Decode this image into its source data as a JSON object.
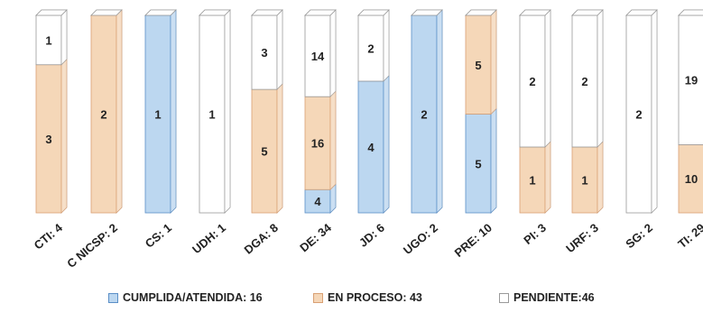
{
  "chart_data": {
    "type": "bar",
    "stacked": true,
    "style": "3d-columns",
    "categories": [
      "CTI: 4",
      "C NICSP: 2",
      "CS: 1",
      "UDH: 1",
      "DGA: 8",
      "DE: 34",
      "JD: 6",
      "UGO: 2",
      "PRE: 10",
      "PI: 3",
      "URF: 3",
      "SG: 2",
      "TI: 29"
    ],
    "series": [
      {
        "name": "CUMPLIDA/ATENDIDA: 16",
        "color": "#bcd7f0",
        "edge": "#5a8fc7",
        "values": [
          0,
          0,
          1,
          0,
          0,
          4,
          4,
          2,
          5,
          0,
          0,
          0,
          0
        ]
      },
      {
        "name": "EN PROCESO: 43",
        "color": "#f5d7b8",
        "edge": "#d9a074",
        "values": [
          3,
          2,
          0,
          0,
          5,
          16,
          0,
          0,
          5,
          1,
          1,
          0,
          10
        ]
      },
      {
        "name": "PENDIENTE:46",
        "color": "#ffffff",
        "edge": "#9a9a9a",
        "values": [
          1,
          0,
          0,
          1,
          3,
          14,
          2,
          0,
          0,
          2,
          2,
          2,
          19
        ]
      }
    ],
    "scale": "each column normalized to 100%",
    "legend_position": "bottom",
    "grid": false
  }
}
